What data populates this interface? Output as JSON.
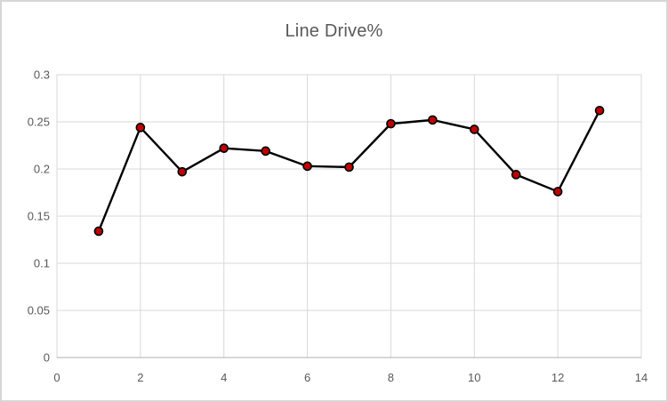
{
  "chart": {
    "title": "Line Drive%",
    "colors": {
      "title_text": "#595959",
      "tick_text": "#595959",
      "gridline": "#d9d9d9",
      "plot_border": "#d9d9d9",
      "axis_line": "#bfbfbf",
      "series_line": "#000000",
      "marker_fill": "#c00000",
      "marker_stroke": "#000000",
      "frame_border": "#d6d6d6",
      "background": "#ffffff"
    }
  },
  "chart_data": {
    "type": "line",
    "title": "Line Drive%",
    "x": [
      1,
      2,
      3,
      4,
      5,
      6,
      7,
      8,
      9,
      10,
      11,
      12,
      13
    ],
    "values": [
      0.134,
      0.244,
      0.197,
      0.222,
      0.219,
      0.203,
      0.202,
      0.248,
      0.252,
      0.242,
      0.194,
      0.176,
      0.262
    ],
    "series_name": "Line Drive%",
    "xlabel": "",
    "ylabel": "",
    "xlim": [
      0,
      14
    ],
    "ylim": [
      0,
      0.3
    ],
    "x_ticks": [
      0,
      2,
      4,
      6,
      8,
      10,
      12,
      14
    ],
    "x_tick_labels": [
      "0",
      "2",
      "4",
      "6",
      "8",
      "10",
      "12",
      "14"
    ],
    "y_ticks": [
      0,
      0.05,
      0.1,
      0.15,
      0.2,
      0.25,
      0.3
    ],
    "y_tick_labels": [
      "0",
      "0.05",
      "0.1",
      "0.15",
      "0.2",
      "0.25",
      "0.3"
    ],
    "grid": true,
    "legend": false,
    "marker_radius": 4.5,
    "line_width": 2.4
  }
}
